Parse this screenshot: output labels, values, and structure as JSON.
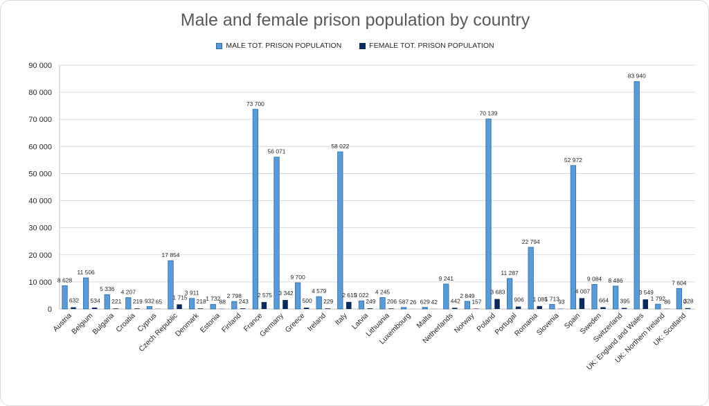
{
  "chart_data": {
    "type": "bar",
    "title": "Male and female prison population by country",
    "xlabel": "",
    "ylabel": "",
    "ylim": [
      0,
      90000
    ],
    "yticks": [
      0,
      10000,
      20000,
      30000,
      40000,
      50000,
      60000,
      70000,
      80000,
      90000
    ],
    "ytick_labels": [
      "0",
      "10 000",
      "20 000",
      "30 000",
      "40 000",
      "50 000",
      "60 000",
      "70 000",
      "80 000",
      "90 000"
    ],
    "grid": true,
    "legend_position": "top-center",
    "categories": [
      "Austria",
      "Belgium",
      "Bulgaria",
      "Croatia",
      "Cyprus",
      "Czech Republic",
      "Denmark",
      "Estonia",
      "Finland",
      "France",
      "Germany",
      "Greece",
      "Ireland",
      "Italy",
      "Latvia",
      "Lithuania",
      "Luxembourg",
      "Malta",
      "Netherlands",
      "Norway",
      "Poland",
      "Portugal",
      "Romania",
      "Slovenia",
      "Spain",
      "Sweden",
      "Switzerland",
      "UK: England and Wales",
      "UK: Northern Ireland",
      "UK: Scotland"
    ],
    "series": [
      {
        "name": "MALE TOT. PRISON POPULATION",
        "color": "#5b9bd5",
        "values": [
          8628,
          11506,
          5336,
          4207,
          932,
          17854,
          3911,
          1732,
          2798,
          73700,
          56071,
          9700,
          4579,
          58022,
          3022,
          4245,
          587,
          629,
          9241,
          2849,
          70139,
          11287,
          22794,
          1713,
          52972,
          9084,
          8486,
          83940,
          1792,
          7604
        ],
        "labels": [
          "8 628",
          "11 506",
          "5 336",
          "4 207",
          "932",
          "17 854",
          "3 911",
          "1 732",
          "2 798",
          "73 700",
          "56 071",
          "9 700",
          "4 579",
          "58 022",
          "3 022",
          "4 245",
          "587",
          "629",
          "9 241",
          "2 849",
          "70 139",
          "11 287",
          "22 794",
          "1 713",
          "52 972",
          "9 084",
          "8 486",
          "83 940",
          "1 792",
          "7 604"
        ]
      },
      {
        "name": "FEMALE TOT. PRISON POPULATION",
        "color": "#0b2a5b",
        "values": [
          632,
          534,
          221,
          219,
          65,
          1715,
          218,
          88,
          243,
          2575,
          3342,
          500,
          229,
          2615,
          249,
          206,
          26,
          42,
          442,
          157,
          3683,
          906,
          1085,
          93,
          4007,
          664,
          395,
          3549,
          86,
          328
        ],
        "labels": [
          "632",
          "534",
          "221",
          "219",
          "65",
          "1 715",
          "218",
          "88",
          "243",
          "2 575",
          "3 342",
          "500",
          "229",
          "2 615",
          "249",
          "206",
          "26",
          "42",
          "442",
          "157",
          "3 683",
          "906",
          "1 085",
          "93",
          "4 007",
          "664",
          "395",
          "3 549",
          "86",
          "328"
        ]
      }
    ],
    "extra_label": "0"
  }
}
